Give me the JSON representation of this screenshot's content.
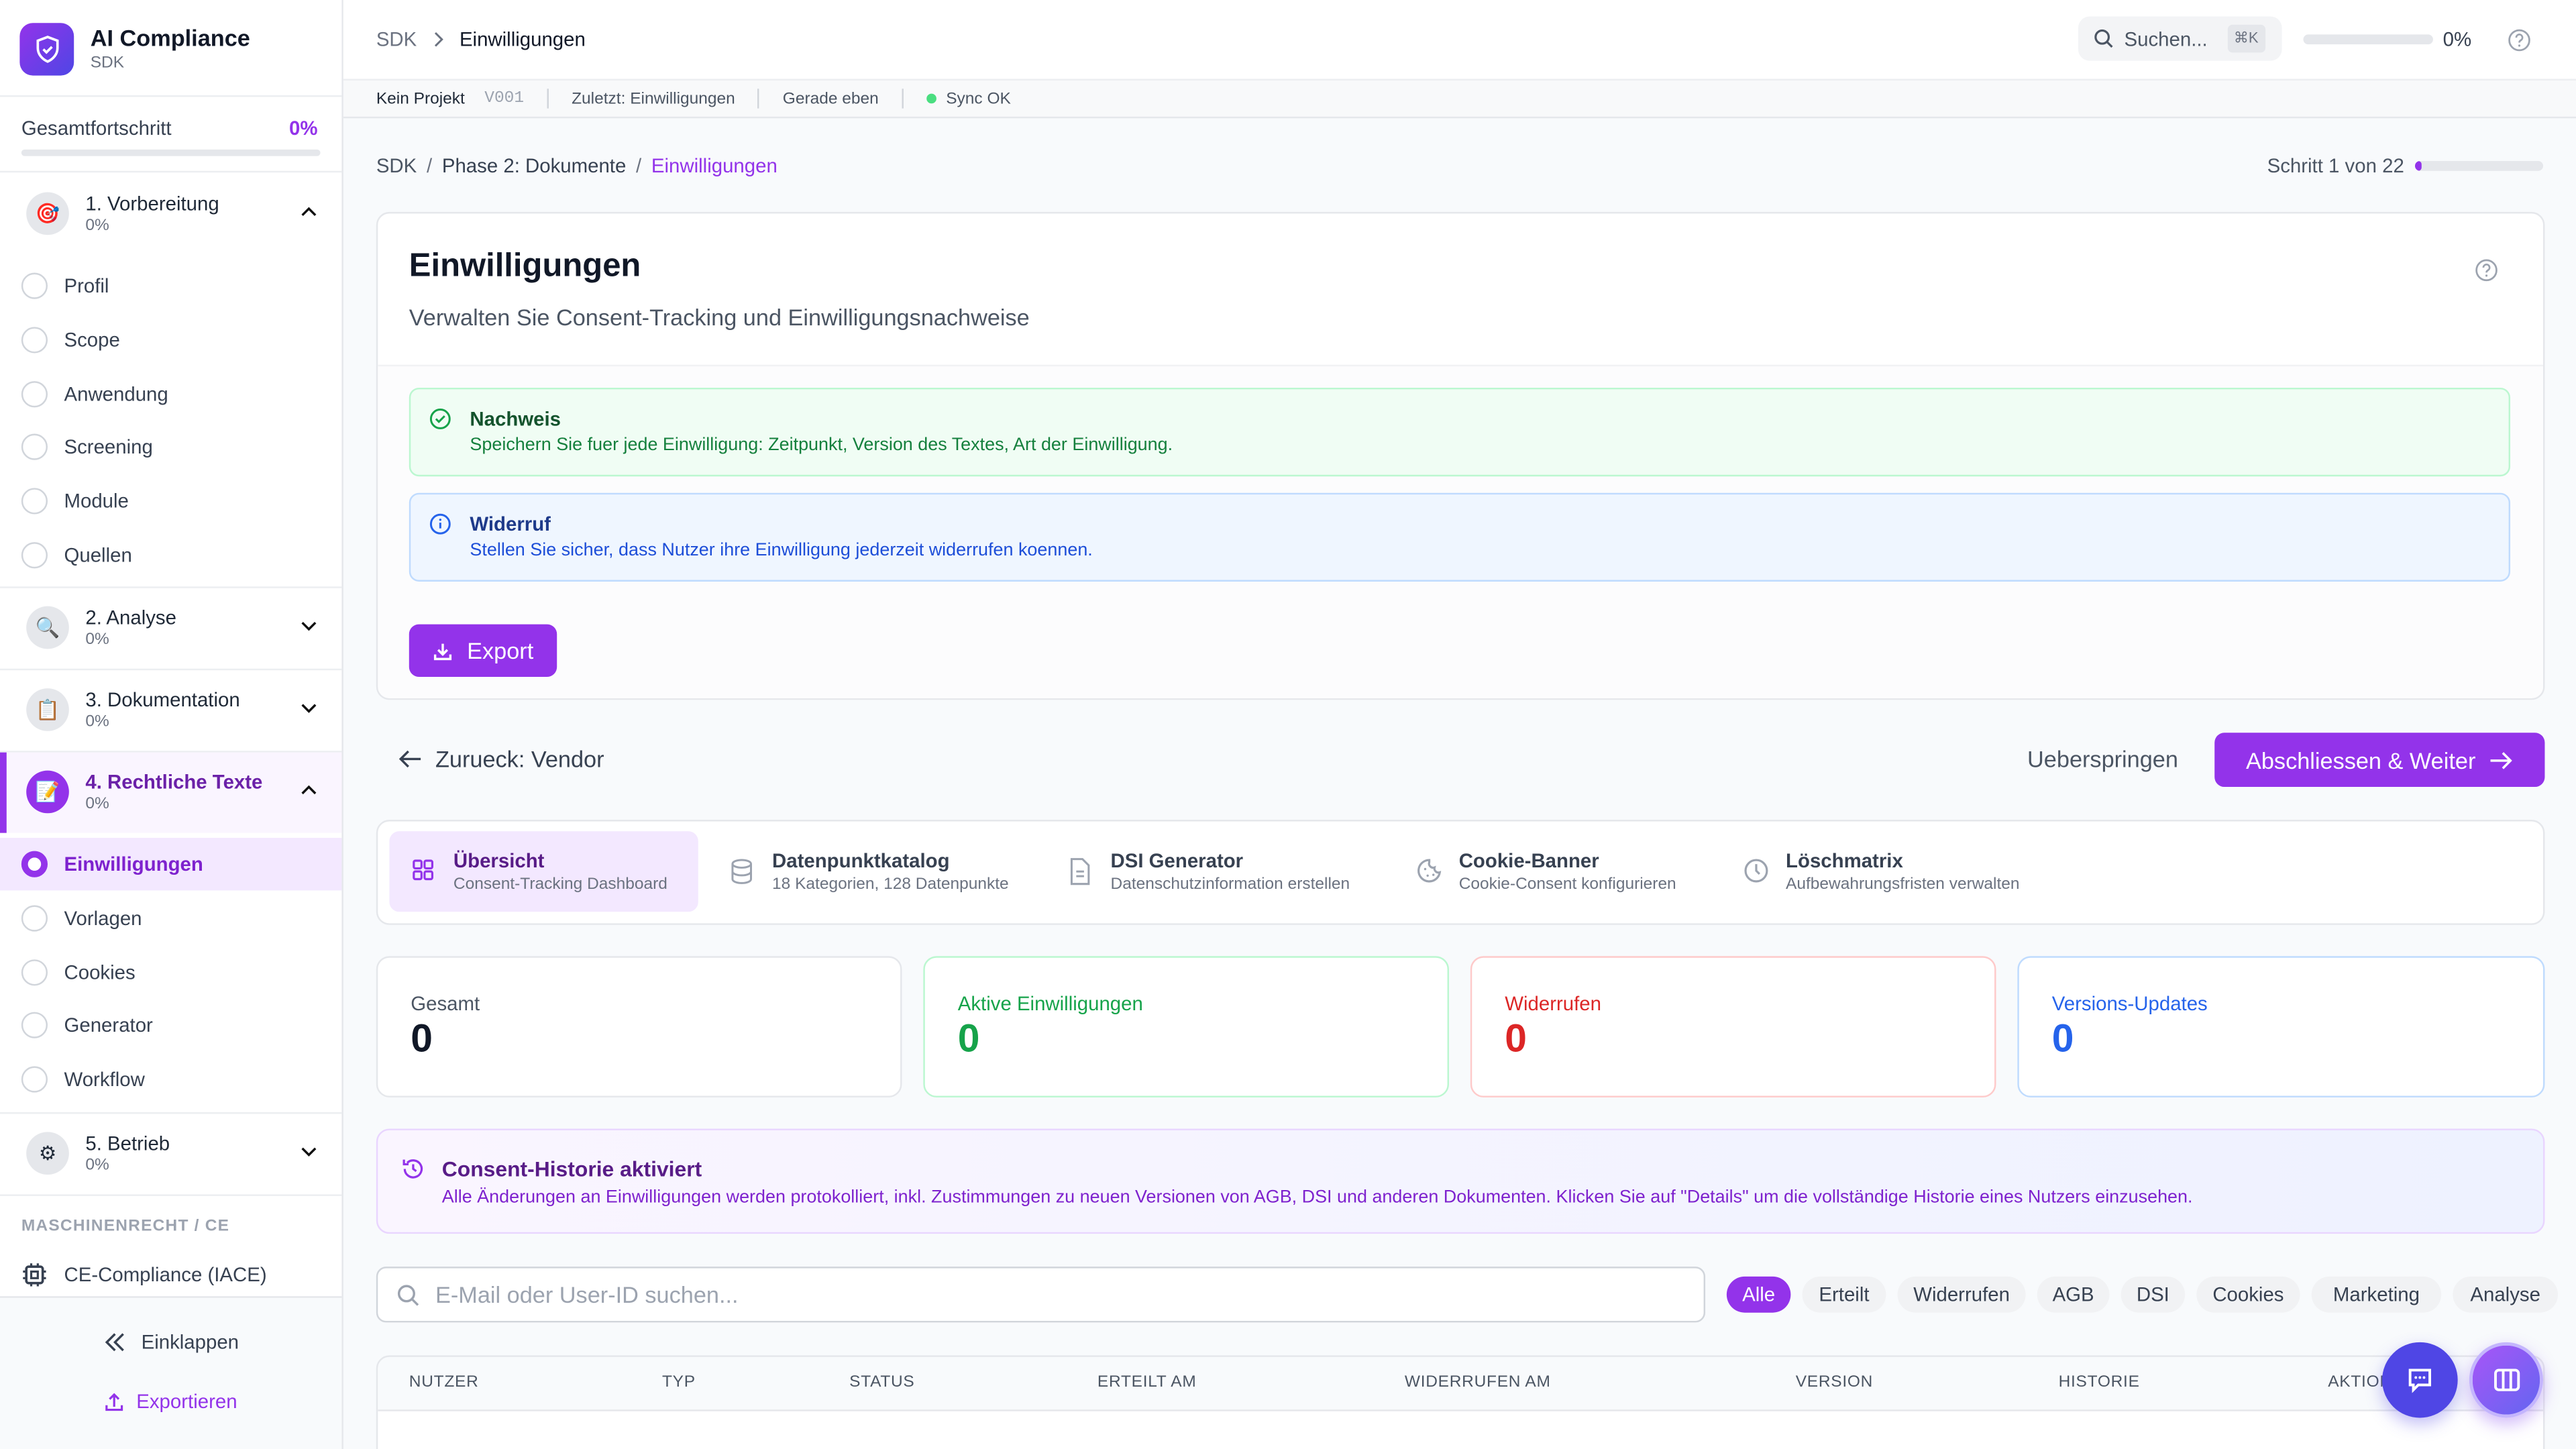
{
  "colors": {
    "accent": "#9333ea",
    "green": "#16a34a",
    "red": "#dc2626",
    "blue": "#2563eb",
    "indigo": "#4f46e5"
  },
  "sidebar": {
    "app_title": "AI Compliance",
    "app_subtitle": "SDK",
    "progress_label": "Gesamtfortschritt",
    "progress_value": "0%",
    "progress_fraction": 0,
    "sections": [
      {
        "title": "1. Vorbereitung",
        "percent": "0%",
        "icon": "target-icon",
        "expanded": true,
        "items": [
          "Profil",
          "Scope",
          "Anwendung",
          "Screening",
          "Module",
          "Quellen"
        ]
      },
      {
        "title": "2. Analyse",
        "percent": "0%",
        "icon": "magnifier-icon",
        "expanded": false
      },
      {
        "title": "3. Dokumentation",
        "percent": "0%",
        "icon": "clipboard-icon",
        "expanded": false
      },
      {
        "title": "4. Rechtliche Texte",
        "percent": "0%",
        "icon": "memo-icon",
        "expanded": true,
        "active": true,
        "items": [
          "Einwilligungen",
          "Vorlagen",
          "Cookies",
          "Generator",
          "Workflow"
        ]
      },
      {
        "title": "5. Betrieb",
        "percent": "0%",
        "icon": "gear-icon",
        "expanded": false
      }
    ],
    "group_label": "MASCHINENRECHT / CE",
    "ce_item": "CE-Compliance (IACE)",
    "collapse": "Einklappen",
    "export": "Exportieren"
  },
  "header": {
    "crumb_root": "SDK",
    "crumb_current": "Einwilligungen",
    "search_placeholder": "Suchen...",
    "shortcut": "⌘K",
    "progress": "0%",
    "progress_fraction": 0
  },
  "statusbar": {
    "project": "Kein Projekt",
    "version": "V001",
    "last": "Zuletzt: Einwilligungen",
    "time": "Gerade eben",
    "sync": "Sync OK"
  },
  "breadcrumb": {
    "root": "SDK",
    "phase": "Phase 2: Dokumente",
    "current": "Einwilligungen",
    "sep": "/",
    "step": "Schritt 1 von 22",
    "step_fraction": 0.045
  },
  "page": {
    "title": "Einwilligungen",
    "subtitle": "Verwalten Sie Consent-Tracking und Einwilligungsnachweise",
    "info_green": {
      "title": "Nachweis",
      "text": "Speichern Sie fuer jede Einwilligung: Zeitpunkt, Version des Textes, Art der Einwilligung."
    },
    "info_blue": {
      "title": "Widerruf",
      "text": "Stellen Sie sicher, dass Nutzer ihre Einwilligung jederzeit widerrufen koennen."
    },
    "export": "Export"
  },
  "nav": {
    "back": "Zurueck: Vendor",
    "skip": "Ueberspringen",
    "next": "Abschliessen & Weiter"
  },
  "tabs": [
    {
      "title": "Übersicht",
      "sub": "Consent-Tracking Dashboard",
      "icon": "grid-icon",
      "active": true
    },
    {
      "title": "Datenpunktkatalog",
      "sub": "18 Kategorien, 128 Datenpunkte",
      "icon": "database-icon"
    },
    {
      "title": "DSI Generator",
      "sub": "Datenschutzinformation erstellen",
      "icon": "document-icon"
    },
    {
      "title": "Cookie-Banner",
      "sub": "Cookie-Consent konfigurieren",
      "icon": "cookie-icon"
    },
    {
      "title": "Löschmatrix",
      "sub": "Aufbewahrungsfristen verwalten",
      "icon": "clock-icon"
    }
  ],
  "stats": [
    {
      "label": "Gesamt",
      "value": "0"
    },
    {
      "label": "Aktive Einwilligungen",
      "value": "0"
    },
    {
      "label": "Widerrufen",
      "value": "0"
    },
    {
      "label": "Versions-Updates",
      "value": "0"
    }
  ],
  "banner": {
    "title": "Consent-Historie aktiviert",
    "text": "Alle Änderungen an Einwilligungen werden protokolliert, inkl. Zustimmungen zu neuen Versionen von AGB, DSI und anderen Dokumenten. Klicken Sie auf \"Details\" um die vollständige Historie eines Nutzers einzusehen."
  },
  "filter": {
    "search_placeholder": "E-Mail oder User-ID suchen...",
    "pills": [
      "Alle",
      "Erteilt",
      "Widerrufen",
      "AGB",
      "DSI",
      "Cookies",
      "Marketing",
      "Analyse"
    ],
    "selected": "Alle"
  },
  "table": {
    "columns": [
      "NUTZER",
      "TYP",
      "STATUS",
      "ERTEILT AM",
      "WIDERRUFEN AM",
      "VERSION",
      "HISTORIE",
      "AKTIONEN"
    ]
  }
}
